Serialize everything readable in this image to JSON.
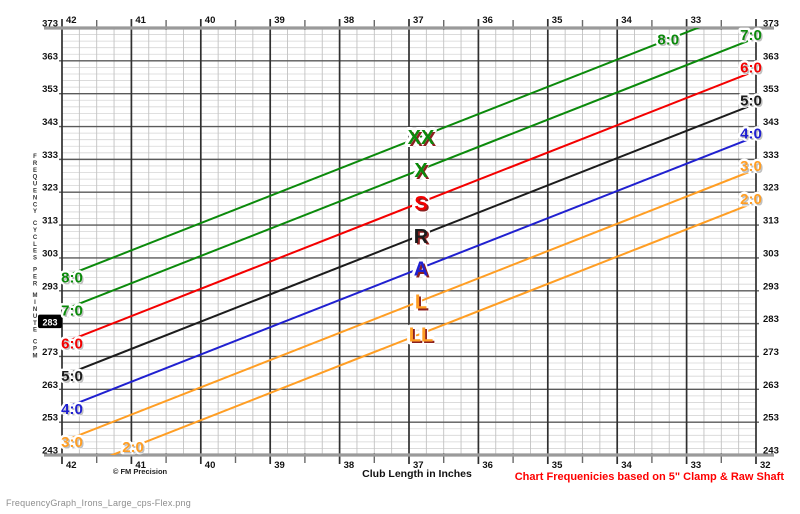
{
  "page": {
    "back_chevron": "‹",
    "filename_caption": "FrequencyGraph_Irons_Large_cps-Flex.png"
  },
  "chart_data": {
    "type": "line",
    "title": "",
    "xlabel": "Club Length in Inches",
    "ylabel": "FREQUENCY CYCLES PER MINUTE CPM",
    "ylabel_words": [
      "FREQUENCY",
      "CYCLES",
      "PER",
      "MINUTE",
      "CPM"
    ],
    "x_unit": "inches",
    "x_range": [
      42,
      32
    ],
    "x_ticks_top": [
      42,
      41,
      40,
      39,
      38,
      37,
      36,
      35,
      34,
      33
    ],
    "x_ticks_bottom": [
      42,
      41,
      40,
      39,
      38,
      37,
      36,
      35,
      34,
      33,
      32
    ],
    "y_unit": "cpm",
    "y_range": [
      243,
      373
    ],
    "y_ticks": [
      373,
      363,
      353,
      343,
      333,
      323,
      313,
      303,
      293,
      283,
      273,
      263,
      253,
      243
    ],
    "y_highlighted_value": 283,
    "grid": {
      "minor_y_step_cpm": 2,
      "minor_x_step_inch": 0.25,
      "half_inch_ticks": true
    },
    "legend_position": "on-lines",
    "series": [
      {
        "label": "8:0",
        "flex_letter": "XX",
        "color": "#0b8a0b",
        "freq_at_42in": 297,
        "freq_at_32in": 380
      },
      {
        "label": "7:0",
        "flex_letter": "X",
        "color": "#0b8a0b",
        "freq_at_42in": 287,
        "freq_at_32in": 370
      },
      {
        "label": "6:0",
        "flex_letter": "S",
        "color": "#f40000",
        "freq_at_42in": 277,
        "freq_at_32in": 360
      },
      {
        "label": "5:0",
        "flex_letter": "R",
        "color": "#1c1c1c",
        "freq_at_42in": 267,
        "freq_at_32in": 350
      },
      {
        "label": "4:0",
        "flex_letter": "A",
        "color": "#2020d0",
        "freq_at_42in": 257,
        "freq_at_32in": 340
      },
      {
        "label": "3:0",
        "flex_letter": "L",
        "color": "#ff9e24",
        "freq_at_42in": 247,
        "freq_at_32in": 330
      },
      {
        "label": "2:0",
        "flex_letter": "LL",
        "color": "#ff9e24",
        "freq_at_42in": 237,
        "freq_at_32in": 320
      }
    ],
    "copyright": "© FM Precision",
    "footnote": "Chart Frequenicies based on 5\" Clamp & Raw Shaft",
    "footnote_color": "#fe0000",
    "axis_label_color": "#111111"
  }
}
